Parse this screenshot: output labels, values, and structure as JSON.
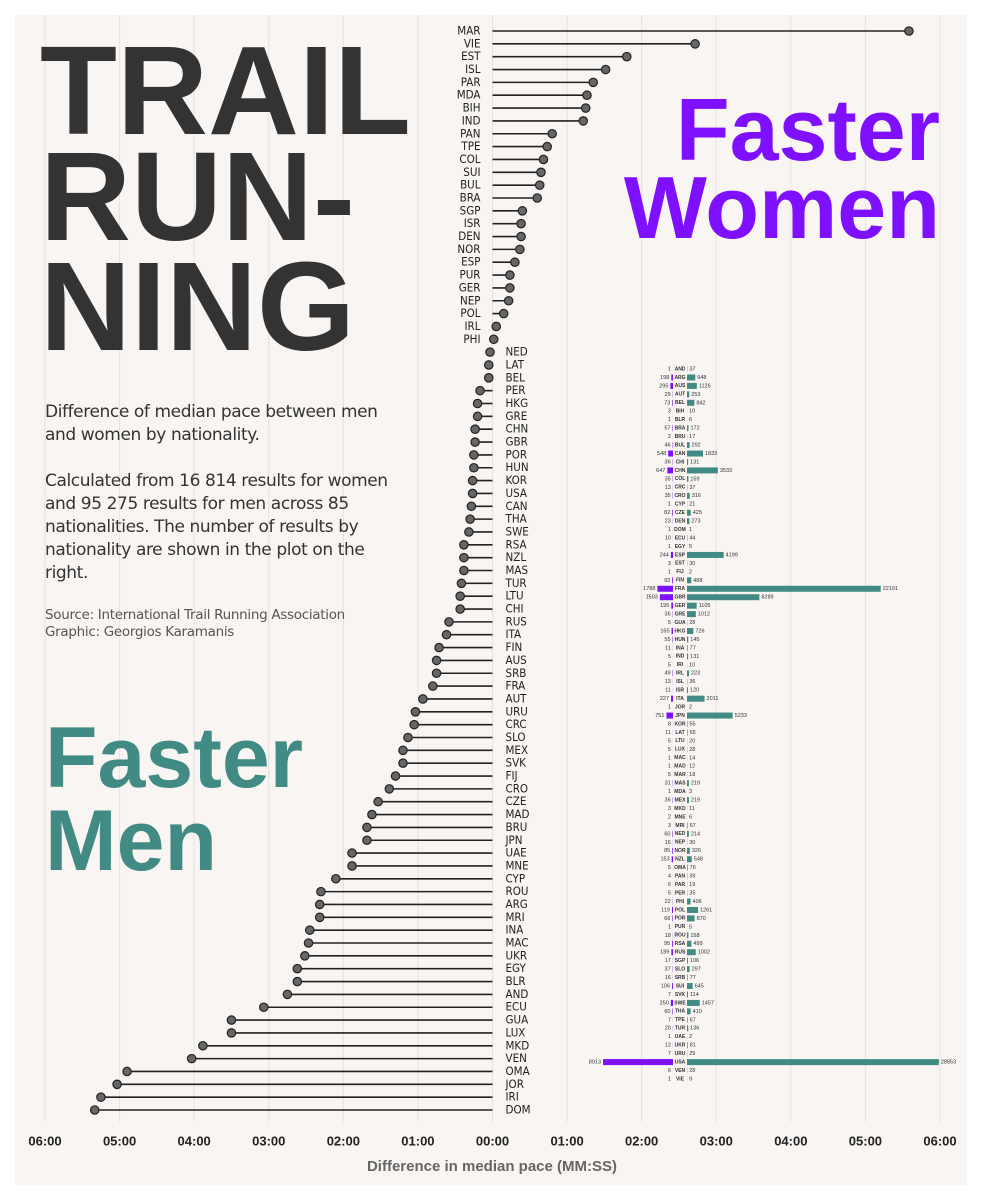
{
  "title_lines": [
    "TRAIL",
    "RUN-",
    "NING"
  ],
  "description": [
    "Difference of median pace between men and women by nationality.",
    "Calculated from 16 814 results for women and 95 275 results for men across 85 nationalities. The number of results by nationality are shown in the plot on the right."
  ],
  "source": [
    "Source: International Trail Running Association",
    "Graphic: Georgios Karamanis"
  ],
  "labels": {
    "women": [
      "Faster",
      "Women"
    ],
    "men": [
      "Faster",
      "Men"
    ]
  },
  "chart_data": [
    {
      "type": "lollipop",
      "x_label": "Difference in median pace (MM:SS)",
      "color": "#666666",
      "categories": [
        "MAR",
        "VIE",
        "EST",
        "ISL",
        "PAR",
        "MDA",
        "BIH",
        "IND",
        "PAN",
        "TPE",
        "COL",
        "SUI",
        "BUL",
        "BRA",
        "SGP",
        "ISR",
        "DEN",
        "NOR",
        "ESP",
        "PUR",
        "GER",
        "NEP",
        "POL",
        "IRL",
        "PHI",
        "NED",
        "LAT",
        "BEL",
        "PER",
        "HKG",
        "GRE",
        "CHN",
        "GBR",
        "POR",
        "HUN",
        "KOR",
        "USA",
        "CAN",
        "THA",
        "SWE",
        "RSA",
        "NZL",
        "MAS",
        "TUR",
        "LTU",
        "CHI",
        "RUS",
        "ITA",
        "FIN",
        "AUS",
        "SRB",
        "FRA",
        "AUT",
        "URU",
        "CRC",
        "SLO",
        "MEX",
        "SVK",
        "FIJ",
        "CRO",
        "CZE",
        "MAD",
        "BRU",
        "JPN",
        "UAE",
        "MNE",
        "CYP",
        "ROU",
        "ARG",
        "MRI",
        "INA",
        "MAC",
        "UKR",
        "EGY",
        "BLR",
        "AND",
        "ECU",
        "GUA",
        "LUX",
        "MKD",
        "VEN",
        "OMA",
        "JOR",
        "IRI",
        "DOM"
      ],
      "values": [
        335,
        163,
        108,
        91,
        81,
        76,
        75,
        73,
        48,
        44,
        41,
        39,
        38,
        36,
        24,
        23,
        23,
        22,
        18,
        14,
        14,
        13,
        9,
        3,
        1,
        -2,
        -3,
        -3,
        -10,
        -12,
        -12,
        -14,
        -14,
        -15,
        -15,
        -16,
        -16,
        -17,
        -18,
        -19,
        -23,
        -23,
        -23,
        -25,
        -26,
        -26,
        -35,
        -37,
        -43,
        -45,
        -45,
        -48,
        -56,
        -62,
        -63,
        -68,
        -72,
        -72,
        -78,
        -83,
        -92,
        -97,
        -101,
        -101,
        -113,
        -113,
        -126,
        -138,
        -139,
        -139,
        -147,
        -148,
        -151,
        -157,
        -157,
        -165,
        -184,
        -210,
        -210,
        -233,
        -242,
        -294,
        -302,
        -315,
        -320
      ],
      "xlim": [
        -360,
        360
      ],
      "xticks": [
        {
          "value": -360,
          "label": "06:00"
        },
        {
          "value": -300,
          "label": "05:00"
        },
        {
          "value": -240,
          "label": "04:00"
        },
        {
          "value": -180,
          "label": "03:00"
        },
        {
          "value": -120,
          "label": "02:00"
        },
        {
          "value": -60,
          "label": "01:00"
        },
        {
          "value": 0,
          "label": "00:00"
        },
        {
          "value": 60,
          "label": "01:00"
        },
        {
          "value": 120,
          "label": "02:00"
        },
        {
          "value": 180,
          "label": "03:00"
        },
        {
          "value": 240,
          "label": "04:00"
        },
        {
          "value": 300,
          "label": "05:00"
        },
        {
          "value": 360,
          "label": "06:00"
        }
      ],
      "grid": true
    },
    {
      "type": "bar",
      "categories": [
        "AND",
        "ARG",
        "AUS",
        "AUT",
        "BEL",
        "BIH",
        "BLR",
        "BRA",
        "BRU",
        "BUL",
        "CAN",
        "CHI",
        "CHN",
        "COL",
        "CRC",
        "CRO",
        "CYP",
        "CZE",
        "DEN",
        "DOM",
        "ECU",
        "EGY",
        "ESP",
        "EST",
        "FIJ",
        "FIN",
        "FRA",
        "GBR",
        "GER",
        "GRE",
        "GUA",
        "HKG",
        "HUN",
        "INA",
        "IND",
        "IRI",
        "IRL",
        "ISL",
        "ISR",
        "ITA",
        "JOR",
        "JPN",
        "KOR",
        "LAT",
        "LTU",
        "LUX",
        "MAC",
        "MAD",
        "MAR",
        "MAS",
        "MDA",
        "MEX",
        "MKD",
        "MNE",
        "MRI",
        "NED",
        "NEP",
        "NOR",
        "NZL",
        "OMA",
        "PAN",
        "PAR",
        "PER",
        "PHI",
        "POL",
        "POR",
        "PUR",
        "ROU",
        "RSA",
        "RUS",
        "SGP",
        "SLO",
        "SRB",
        "SUI",
        "SVK",
        "SWE",
        "THA",
        "TPE",
        "TUR",
        "UAE",
        "UKR",
        "URU",
        "USA",
        "VEN",
        "VIE"
      ],
      "series": [
        {
          "color": "#7f0fff",
          "values": [
            1,
            198,
            295,
            29,
            73,
            3,
            1,
            57,
            2,
            46,
            548,
            36,
            647,
            35,
            13,
            35,
            1,
            82,
            23,
            1,
            10,
            1,
            244,
            3,
            1,
            93,
            1788,
            1503,
            195,
            36,
            5,
            165,
            55,
            11,
            5,
            5,
            49,
            13,
            11,
            227,
            1,
            751,
            8,
            11,
            5,
            5,
            1,
            1,
            5,
            31,
            1,
            36,
            3,
            2,
            3,
            60,
            16,
            85,
            153,
            5,
            4,
            6,
            5,
            22,
            119,
            66,
            1,
            18,
            95,
            189,
            17,
            37,
            16,
            106,
            7,
            250,
            60,
            7,
            20,
            1,
            12,
            7,
            8013,
            6,
            1
          ]
        },
        {
          "color": "#418b84",
          "values": [
            37,
            948,
            1126,
            253,
            842,
            10,
            6,
            172,
            17,
            292,
            1833,
            131,
            3533,
            159,
            37,
            316,
            21,
            425,
            273,
            1,
            44,
            5,
            4199,
            30,
            2,
            488,
            22191,
            8289,
            1105,
            1012,
            28,
            726,
            145,
            77,
            131,
            10,
            223,
            36,
            120,
            2011,
            2,
            5233,
            55,
            65,
            20,
            28,
            14,
            12,
            18,
            219,
            3,
            219,
            11,
            6,
            67,
            214,
            30,
            326,
            548,
            76,
            39,
            19,
            35,
            406,
            1261,
            870,
            5,
            158,
            499,
            1002,
            106,
            297,
            77,
            645,
            114,
            1457,
            410,
            67,
            136,
            2,
            81,
            29,
            28853,
            28,
            9
          ]
        }
      ]
    }
  ]
}
